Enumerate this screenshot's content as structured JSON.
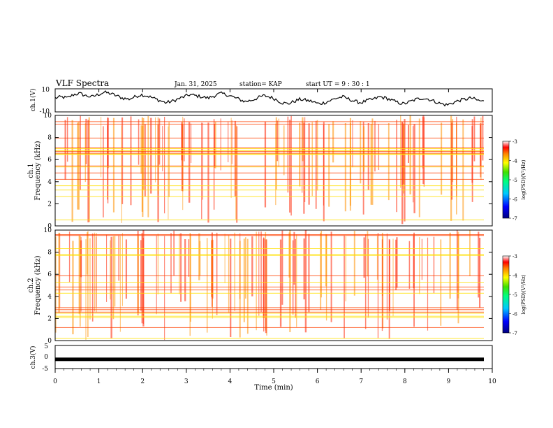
{
  "header": {
    "title": "VLF Spectra",
    "date": "Jan. 31, 2025",
    "station": "station= KAP",
    "start": "start  UT =  9 : 30 : 1"
  },
  "colors": {
    "trace": "#000000",
    "colormap": [
      "#3a0070",
      "#0000ff",
      "#0060ff",
      "#00c8ff",
      "#00ffb0",
      "#00e000",
      "#b0ff00",
      "#ffff00",
      "#ff9000",
      "#ff0000",
      "#ffb0b0",
      "#ffffff"
    ]
  },
  "chart_data": [
    {
      "type": "line",
      "name": "ch1-waveform",
      "ylabel": "ch.1(V)",
      "ylim": [
        -10,
        10
      ],
      "yticks": [
        "10",
        "-10"
      ],
      "xlim": [
        0,
        10
      ],
      "trace_profile": [
        2,
        3,
        2,
        5,
        6,
        4,
        3,
        5,
        7,
        6,
        4,
        2,
        1,
        3,
        5,
        4,
        2,
        0,
        -2,
        -1,
        1,
        3,
        5,
        4,
        3,
        2,
        4,
        6,
        5,
        3,
        1,
        -1,
        0,
        2,
        4,
        3,
        1,
        -2,
        -3,
        -1,
        1,
        0,
        -1,
        -3,
        -2,
        0,
        2,
        3,
        1,
        -1,
        -2,
        0,
        1,
        3,
        2,
        0,
        -2,
        -3,
        -1,
        1,
        2,
        1,
        -1,
        -3,
        -4,
        -2,
        0,
        1,
        2,
        0,
        -1
      ]
    },
    {
      "type": "heatmap",
      "name": "ch1-spectrogram",
      "ylabel": "Frequency (kHz)",
      "channel": "ch.1",
      "ylim": [
        0,
        10
      ],
      "yticks": [
        "0",
        "2",
        "4",
        "6",
        "8",
        "10"
      ],
      "xlim": [
        0,
        10
      ],
      "band_profile_khz": [
        [
          0,
          0.6,
          9
        ],
        [
          0.6,
          1.2,
          7
        ],
        [
          1.2,
          1.8,
          6
        ],
        [
          1.8,
          2.4,
          6
        ],
        [
          2.4,
          3.0,
          4
        ],
        [
          3.0,
          3.6,
          3
        ],
        [
          3.6,
          4.0,
          8
        ],
        [
          4.0,
          4.6,
          1
        ],
        [
          4.6,
          5.2,
          2
        ],
        [
          5.2,
          5.8,
          3
        ],
        [
          5.8,
          6.4,
          2
        ],
        [
          6.4,
          7.0,
          4
        ],
        [
          7.0,
          8.0,
          5
        ],
        [
          8.0,
          9.0,
          6
        ],
        [
          9.0,
          10,
          6
        ]
      ],
      "colorbar": {
        "label": "log(PSD)(V²/Hz)",
        "ticks": [
          "-3",
          "-4",
          "-5",
          "-6",
          "-7"
        ]
      }
    },
    {
      "type": "heatmap",
      "name": "ch2-spectrogram",
      "ylabel": "Frequency (kHz)",
      "channel": "ch.2",
      "ylim": [
        0,
        10
      ],
      "yticks": [
        "0",
        "2",
        "4",
        "6",
        "8",
        "10"
      ],
      "xlim": [
        0,
        10
      ],
      "band_profile_khz": [
        [
          0,
          0.6,
          9
        ],
        [
          0.6,
          1.2,
          4
        ],
        [
          1.2,
          1.8,
          5
        ],
        [
          1.8,
          2.4,
          4
        ],
        [
          2.4,
          3.0,
          3
        ],
        [
          3.0,
          3.6,
          5
        ],
        [
          3.6,
          4.2,
          4
        ],
        [
          4.2,
          5.2,
          4
        ],
        [
          5.2,
          6.2,
          5
        ],
        [
          6.2,
          7.4,
          5
        ],
        [
          7.4,
          8.6,
          6
        ],
        [
          8.6,
          10,
          6
        ]
      ],
      "colorbar": {
        "label": "log(PSD)(V²/Hz)",
        "ticks": [
          "-3",
          "-4",
          "-5",
          "-6",
          "-7"
        ]
      }
    },
    {
      "type": "line",
      "name": "ch3-signal",
      "ylabel": "ch.3(V)",
      "ylim": [
        -5,
        5
      ],
      "yticks": [
        "5",
        "0",
        "-5"
      ],
      "level": -1,
      "xlim": [
        0,
        10
      ],
      "xlabel": "Time (min)",
      "xticks": [
        "0",
        "1",
        "2",
        "3",
        "4",
        "5",
        "6",
        "7",
        "8",
        "9",
        "10"
      ]
    }
  ]
}
